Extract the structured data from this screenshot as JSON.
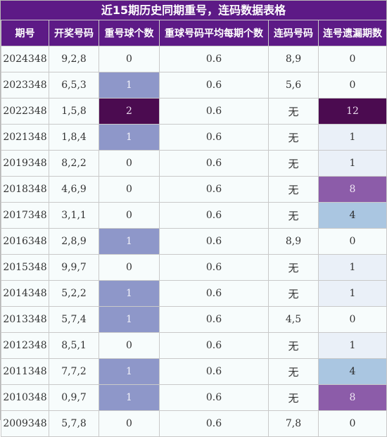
{
  "title": "近15期历史同期重号，连码数据表格",
  "headers": [
    "期号",
    "开奖号码",
    "重号球个数",
    "重球号码平均每期个数",
    "连码号码",
    "连号遗漏期数"
  ],
  "rows": [
    {
      "period": "2024348",
      "numbers": "9,2,8",
      "repeat": "0",
      "avg": "0.6",
      "consec": "8,9",
      "gap": "0"
    },
    {
      "period": "2023348",
      "numbers": "6,5,3",
      "repeat": "1",
      "avg": "0.6",
      "consec": "5,6",
      "gap": "0"
    },
    {
      "period": "2022348",
      "numbers": "1,5,8",
      "repeat": "2",
      "avg": "0.6",
      "consec": "无",
      "gap": "12"
    },
    {
      "period": "2021348",
      "numbers": "1,8,4",
      "repeat": "1",
      "avg": "0.6",
      "consec": "无",
      "gap": "1"
    },
    {
      "period": "2019348",
      "numbers": "8,2,2",
      "repeat": "0",
      "avg": "0.6",
      "consec": "无",
      "gap": "1"
    },
    {
      "period": "2018348",
      "numbers": "4,6,9",
      "repeat": "0",
      "avg": "0.6",
      "consec": "无",
      "gap": "8"
    },
    {
      "period": "2017348",
      "numbers": "3,1,1",
      "repeat": "0",
      "avg": "0.6",
      "consec": "无",
      "gap": "4"
    },
    {
      "period": "2016348",
      "numbers": "2,8,9",
      "repeat": "1",
      "avg": "0.6",
      "consec": "8,9",
      "gap": "0"
    },
    {
      "period": "2015348",
      "numbers": "9,9,7",
      "repeat": "0",
      "avg": "0.6",
      "consec": "无",
      "gap": "1"
    },
    {
      "period": "2014348",
      "numbers": "5,2,2",
      "repeat": "1",
      "avg": "0.6",
      "consec": "无",
      "gap": "1"
    },
    {
      "period": "2013348",
      "numbers": "5,7,4",
      "repeat": "1",
      "avg": "0.6",
      "consec": "4,5",
      "gap": "0"
    },
    {
      "period": "2012348",
      "numbers": "8,5,1",
      "repeat": "0",
      "avg": "0.6",
      "consec": "无",
      "gap": "1"
    },
    {
      "period": "2011348",
      "numbers": "7,7,2",
      "repeat": "1",
      "avg": "0.6",
      "consec": "无",
      "gap": "4"
    },
    {
      "period": "2010348",
      "numbers": "0,9,7",
      "repeat": "1",
      "avg": "0.6",
      "consec": "无",
      "gap": "8"
    },
    {
      "period": "2009348",
      "numbers": "5,7,8",
      "repeat": "0",
      "avg": "0.6",
      "consec": "7,8",
      "gap": "0"
    }
  ],
  "colors": {
    "header_bg": "#5d1a86",
    "repeat_1": "#8e97c9",
    "repeat_2": "#4b0b50",
    "gap_12": "#4b0b50",
    "gap_8": "#8c5ca9",
    "gap_4": "#aac6e1",
    "gap_1": "#eaf0f8"
  }
}
